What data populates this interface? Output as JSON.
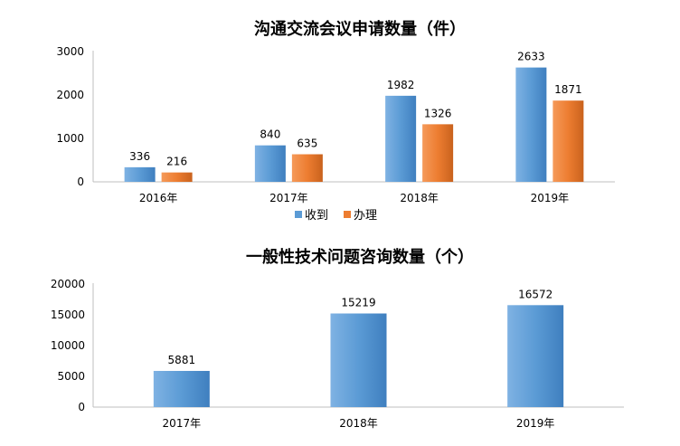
{
  "chart_data": [
    {
      "type": "bar",
      "title": "沟通交流会议申请数量（件）",
      "categories": [
        "2016年",
        "2017年",
        "2018年",
        "2019年"
      ],
      "series": [
        {
          "name": "收到",
          "values": [
            336,
            840,
            1982,
            2633
          ]
        },
        {
          "name": "办理",
          "values": [
            216,
            635,
            1326,
            1871
          ]
        }
      ],
      "yticks": [
        "0",
        "1000",
        "2000",
        "3000"
      ],
      "ylim": [
        0,
        3000
      ],
      "grid": false,
      "legend_position": "bottom"
    },
    {
      "type": "bar",
      "title": "一般性技术问题咨询数量（个）",
      "categories": [
        "2017年",
        "2018年",
        "2019年"
      ],
      "series": [
        {
          "values": [
            5881,
            15219,
            16572
          ]
        }
      ],
      "yticks": [
        "0",
        "5000",
        "10000",
        "15000",
        "20000"
      ],
      "ylim": [
        0,
        20000
      ],
      "grid": false
    }
  ],
  "colors": {
    "received": "#5b9bd5",
    "handled": "#ed7d31"
  }
}
